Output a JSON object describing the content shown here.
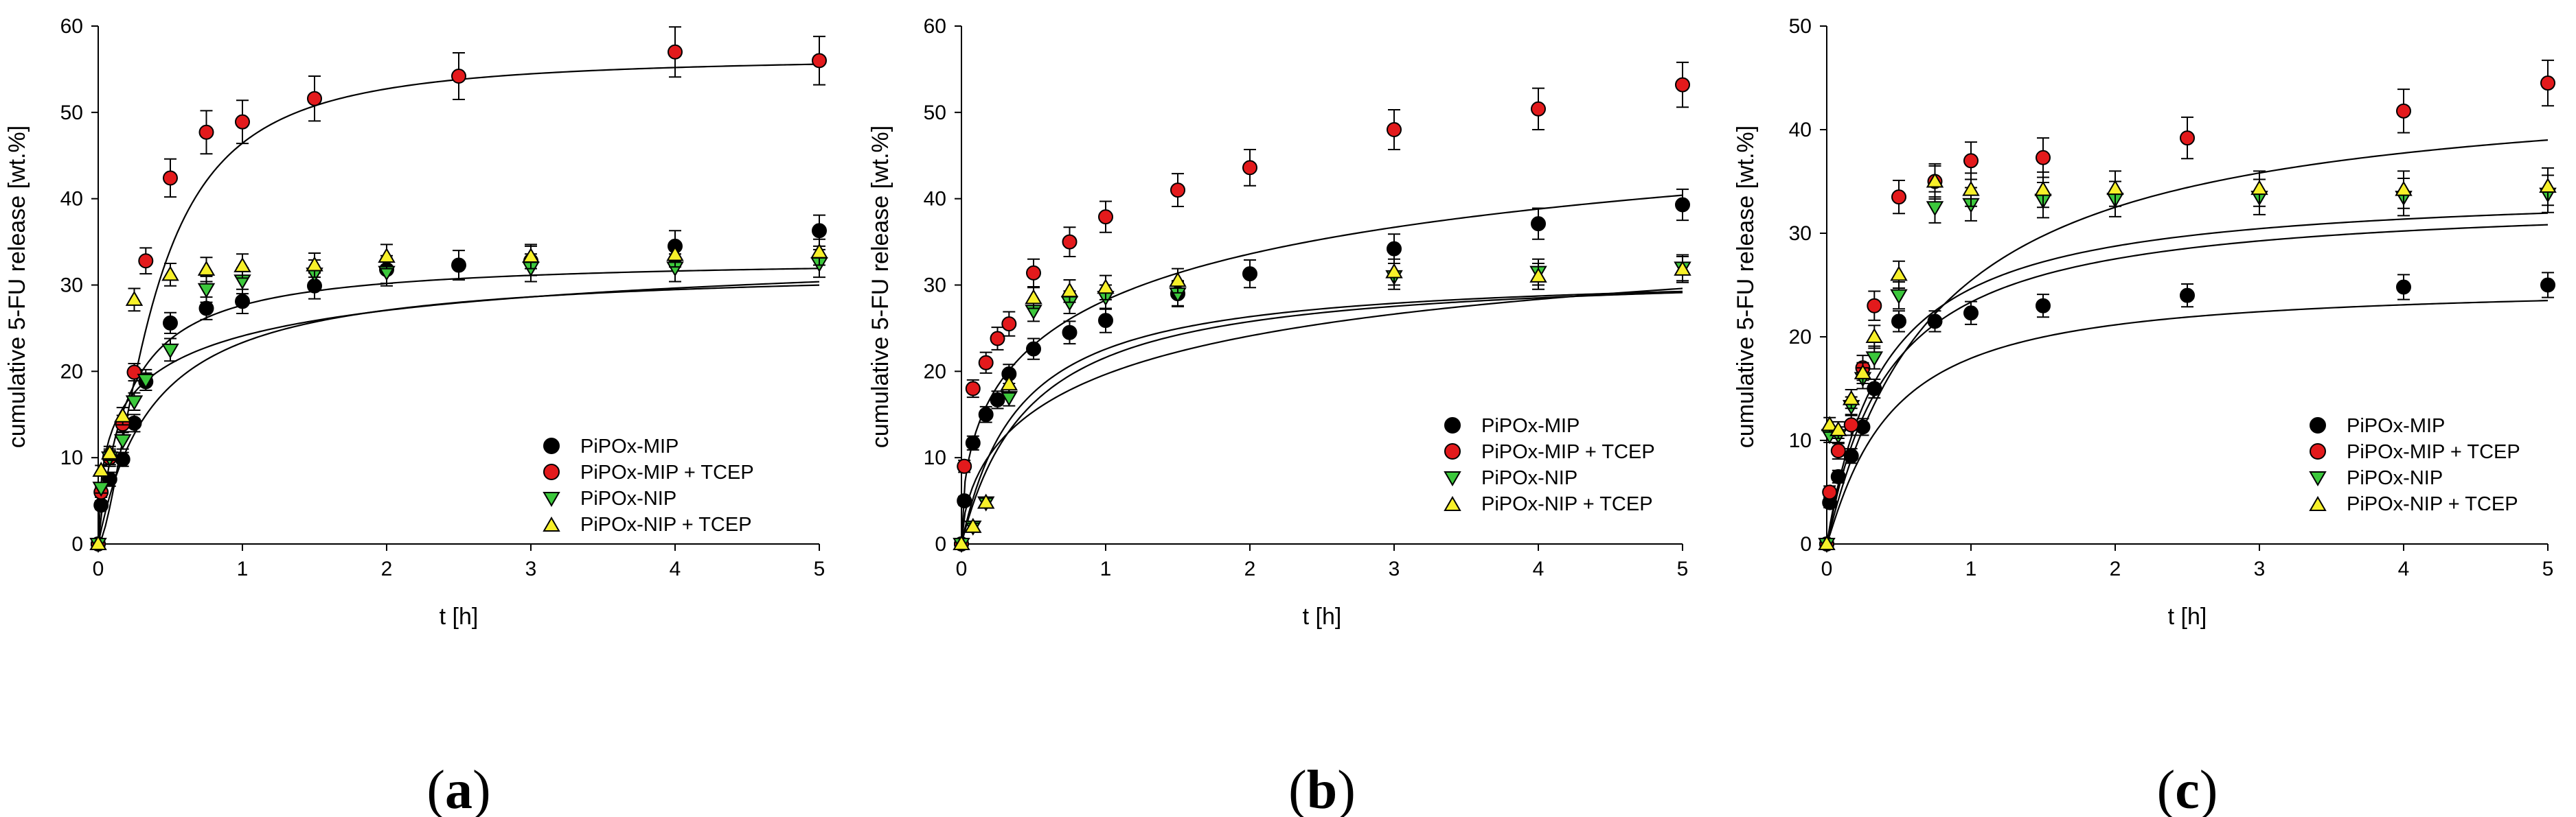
{
  "colors": {
    "mip": "#000000",
    "mip_tcep": "#e31a1c",
    "nip": "#3cc83c",
    "nip_tcep": "#f7f02a",
    "curve": "#000000",
    "axis": "#000000"
  },
  "legend_labels": [
    "PiPOx-MIP",
    "PiPOx-MIP + TCEP",
    "PiPOx-NIP",
    "PiPOx-NIP + TCEP"
  ],
  "chart_data": [
    {
      "type": "scatter",
      "panel_label": "a",
      "xlabel": "t [h]",
      "ylabel": "cumulative 5-FU release [wt.%]",
      "xlim": [
        0,
        5
      ],
      "ylim": [
        0,
        60
      ],
      "xticks": [
        0,
        1,
        2,
        3,
        4,
        5
      ],
      "yticks": [
        0,
        10,
        20,
        30,
        40,
        50,
        60
      ],
      "legend_position": "bottom-right",
      "grid": false,
      "series": [
        {
          "name": "PiPOx-MIP",
          "marker": "circle",
          "color": "#000000",
          "x": [
            0,
            0.02,
            0.08,
            0.17,
            0.25,
            0.33,
            0.5,
            0.75,
            1,
            1.5,
            2,
            2.5,
            3,
            4,
            5
          ],
          "y": [
            0,
            4.5,
            7.5,
            9.8,
            14,
            18.8,
            25.6,
            27.3,
            28.1,
            29.9,
            31.8,
            32.3,
            32.8,
            34.5,
            36.3
          ],
          "err": [
            0,
            0.5,
            0.8,
            0.8,
            1,
            1,
            1.2,
            1.3,
            1.4,
            1.5,
            1.6,
            1.7,
            1.7,
            1.8,
            1.8
          ],
          "fit": {
            "ymax": 38.5,
            "k": 2.8,
            "n": 0.5
          }
        },
        {
          "name": "PiPOx-MIP + TCEP",
          "marker": "circle",
          "color": "#e31a1c",
          "x": [
            0,
            0.02,
            0.08,
            0.17,
            0.25,
            0.33,
            0.5,
            0.75,
            1,
            1.5,
            2.5,
            4,
            5
          ],
          "y": [
            0,
            6,
            10,
            13.9,
            19.9,
            32.8,
            42.4,
            47.7,
            48.9,
            51.6,
            54.2,
            57,
            56
          ],
          "err": [
            0,
            0.6,
            1,
            1,
            1,
            1.5,
            2.2,
            2.5,
            2.5,
            2.6,
            2.7,
            2.9,
            2.8
          ],
          "fit": {
            "ymax": 56.5,
            "k": 2.6,
            "n": 1.6
          }
        },
        {
          "name": "PiPOx-NIP",
          "marker": "triangle-down",
          "color": "#3cc83c",
          "x": [
            0,
            0.02,
            0.08,
            0.17,
            0.25,
            0.33,
            0.5,
            0.75,
            1,
            1.5,
            2,
            3,
            4,
            5
          ],
          "y": [
            0,
            6.5,
            10,
            12,
            16.5,
            19,
            22.5,
            29.5,
            30.5,
            31.3,
            31.5,
            32,
            32,
            32.5
          ],
          "err": [
            0,
            0.6,
            0.8,
            1,
            1,
            1.2,
            1.3,
            1.5,
            1.5,
            1.6,
            1.6,
            1.6,
            1.6,
            1.6
          ],
          "fit": {
            "ymax": 32.3,
            "k": 2.6,
            "n": 1
          }
        },
        {
          "name": "PiPOx-NIP + TCEP",
          "marker": "triangle-up",
          "color": "#f7f02a",
          "x": [
            0,
            0.02,
            0.08,
            0.17,
            0.25,
            0.5,
            0.75,
            1,
            1.5,
            2,
            3,
            4,
            5
          ],
          "y": [
            0,
            8.5,
            10.5,
            14.8,
            28.3,
            31.2,
            31.8,
            32.2,
            32.3,
            33.3,
            33.3,
            33.5,
            33.8
          ],
          "err": [
            0,
            0.6,
            0.8,
            1,
            1.3,
            1.3,
            1.4,
            1.4,
            1.4,
            1.4,
            1.4,
            1.4,
            1.5
          ],
          "fit": {
            "ymax": 33.2,
            "k": 5,
            "n": 1
          }
        }
      ]
    },
    {
      "type": "scatter",
      "panel_label": "b",
      "xlabel": "t [h]",
      "ylabel": "cumulative 5-FU release [wt.%]",
      "xlim": [
        0,
        5
      ],
      "ylim": [
        0,
        60
      ],
      "xticks": [
        0,
        1,
        2,
        3,
        4,
        5
      ],
      "yticks": [
        0,
        10,
        20,
        30,
        40,
        50,
        60
      ],
      "legend_position": "bottom-right",
      "grid": false,
      "series": [
        {
          "name": "PiPOx-MIP",
          "marker": "circle",
          "color": "#000000",
          "x": [
            0,
            0.02,
            0.08,
            0.17,
            0.25,
            0.33,
            0.5,
            0.75,
            1,
            1.5,
            2,
            3,
            4,
            5
          ],
          "y": [
            0,
            5,
            11.7,
            15,
            16.7,
            19.7,
            22.6,
            24.5,
            25.9,
            29,
            31.3,
            34.2,
            37.1,
            39.3
          ],
          "err": [
            0,
            0.5,
            0.8,
            0.9,
            1,
            1.1,
            1.2,
            1.3,
            1.4,
            1.5,
            1.6,
            1.7,
            1.8,
            1.8
          ],
          "fit": {
            "ymax": 43,
            "k": 0.75,
            "n": 0.6
          }
        },
        {
          "name": "PiPOx-MIP + TCEP",
          "marker": "circle",
          "color": "#e31a1c",
          "x": [
            0,
            0.02,
            0.08,
            0.17,
            0.25,
            0.33,
            0.5,
            0.75,
            1,
            1.5,
            2,
            3,
            4,
            5
          ],
          "y": [
            0,
            9,
            18,
            21,
            23.8,
            25.5,
            31.4,
            35,
            37.9,
            41,
            43.6,
            48,
            50.4,
            53.2
          ],
          "err": [
            0,
            0.7,
            1,
            1.2,
            1.3,
            1.4,
            1.6,
            1.7,
            1.8,
            1.9,
            2.1,
            2.3,
            2.4,
            2.6
          ],
          "fit": {
            "ymax": 62,
            "k": 0.7,
            "n": 0.5
          }
        },
        {
          "name": "PiPOx-NIP",
          "marker": "triangle-down",
          "color": "#3cc83c",
          "x": [
            0,
            0.08,
            0.17,
            0.33,
            0.5,
            0.75,
            1,
            1.5,
            3,
            4,
            5
          ],
          "y": [
            0,
            2,
            4.8,
            17,
            27,
            28,
            28.6,
            29,
            31,
            31.5,
            32
          ],
          "err": [
            0,
            0.4,
            0.5,
            1,
            1.2,
            1.3,
            1.4,
            1.4,
            1.5,
            1.5,
            1.5
          ],
          "fit": {
            "ymax": 31.9,
            "k": 2.1,
            "n": 1
          }
        },
        {
          "name": "PiPOx-NIP + TCEP",
          "marker": "triangle-up",
          "color": "#f7f02a",
          "x": [
            0,
            0.08,
            0.17,
            0.33,
            0.5,
            0.75,
            1,
            1.5,
            3,
            4,
            5
          ],
          "y": [
            0,
            2,
            4.8,
            18.5,
            28.5,
            29.3,
            29.7,
            30.5,
            31.5,
            31,
            31.8
          ],
          "err": [
            0,
            0.4,
            0.5,
            1,
            1.2,
            1.3,
            1.4,
            1.4,
            1.5,
            1.5,
            1.5
          ],
          "fit": {
            "ymax": 31.6,
            "k": 2.5,
            "n": 1
          }
        }
      ]
    },
    {
      "type": "scatter",
      "panel_label": "c",
      "xlabel": "t [h]",
      "ylabel": "cumulative 5-FU release [wt.%]",
      "xlim": [
        0,
        5
      ],
      "ylim": [
        0,
        50
      ],
      "xticks": [
        0,
        1,
        2,
        3,
        4,
        5
      ],
      "yticks": [
        0,
        10,
        20,
        30,
        40,
        50
      ],
      "legend_position": "bottom-right",
      "grid": false,
      "series": [
        {
          "name": "PiPOx-MIP",
          "marker": "circle",
          "color": "#000000",
          "x": [
            0,
            0.02,
            0.08,
            0.17,
            0.25,
            0.33,
            0.5,
            0.75,
            1,
            1.5,
            2.5,
            4,
            5
          ],
          "y": [
            0,
            4,
            6.5,
            8.5,
            11.3,
            15,
            21.5,
            21.5,
            22.3,
            23,
            24,
            24.8,
            25
          ],
          "err": [
            0,
            0.5,
            0.6,
            0.7,
            0.8,
            0.9,
            1,
            1,
            1.1,
            1.1,
            1.1,
            1.2,
            1.2
          ],
          "fit": {
            "ymax": 25.1,
            "k": 2.3,
            "n": 1.1
          }
        },
        {
          "name": "PiPOx-MIP + TCEP",
          "marker": "circle",
          "color": "#e31a1c",
          "x": [
            0,
            0.02,
            0.08,
            0.17,
            0.25,
            0.33,
            0.5,
            0.75,
            1,
            1.5,
            2.5,
            4,
            5
          ],
          "y": [
            0,
            5,
            9,
            11.5,
            17,
            23,
            33.5,
            35,
            37,
            37.3,
            39.2,
            41.8,
            44.5
          ],
          "err": [
            0,
            0.6,
            0.8,
            1,
            1.2,
            1.4,
            1.6,
            1.7,
            1.8,
            1.9,
            2,
            2.1,
            2.2
          ],
          "fit": {
            "ymax": 45,
            "k": 1.3,
            "n": 1
          }
        },
        {
          "name": "PiPOx-NIP",
          "marker": "triangle-down",
          "color": "#3cc83c",
          "x": [
            0,
            0.02,
            0.08,
            0.17,
            0.25,
            0.33,
            0.5,
            0.75,
            1,
            1.5,
            2,
            3,
            4,
            5
          ],
          "y": [
            0,
            10.5,
            10.5,
            13.3,
            16,
            18,
            24,
            32.5,
            32.8,
            33.2,
            33.3,
            33.5,
            33.5,
            33.8
          ],
          "err": [
            0,
            0.7,
            0.8,
            0.9,
            1,
            1.1,
            1.3,
            1.5,
            1.6,
            1.7,
            1.7,
            1.7,
            1.8,
            1.8
          ],
          "fit": {
            "ymax": 33.5,
            "k": 2.3,
            "n": 1
          }
        },
        {
          "name": "PiPOx-NIP + TCEP",
          "marker": "triangle-up",
          "color": "#f7f02a",
          "x": [
            0,
            0.02,
            0.08,
            0.17,
            0.25,
            0.33,
            0.5,
            0.75,
            1,
            1.5,
            2,
            3,
            4,
            5
          ],
          "y": [
            0,
            11.5,
            11,
            14,
            16.5,
            20,
            26,
            35,
            34.2,
            34.2,
            34.3,
            34.3,
            34.2,
            34.5
          ],
          "err": [
            0,
            0.7,
            0.8,
            0.9,
            1,
            1.1,
            1.3,
            1.5,
            1.6,
            1.7,
            1.7,
            1.7,
            1.8,
            1.8
          ],
          "fit": {
            "ymax": 34.5,
            "k": 2.5,
            "n": 1
          }
        }
      ]
    }
  ]
}
